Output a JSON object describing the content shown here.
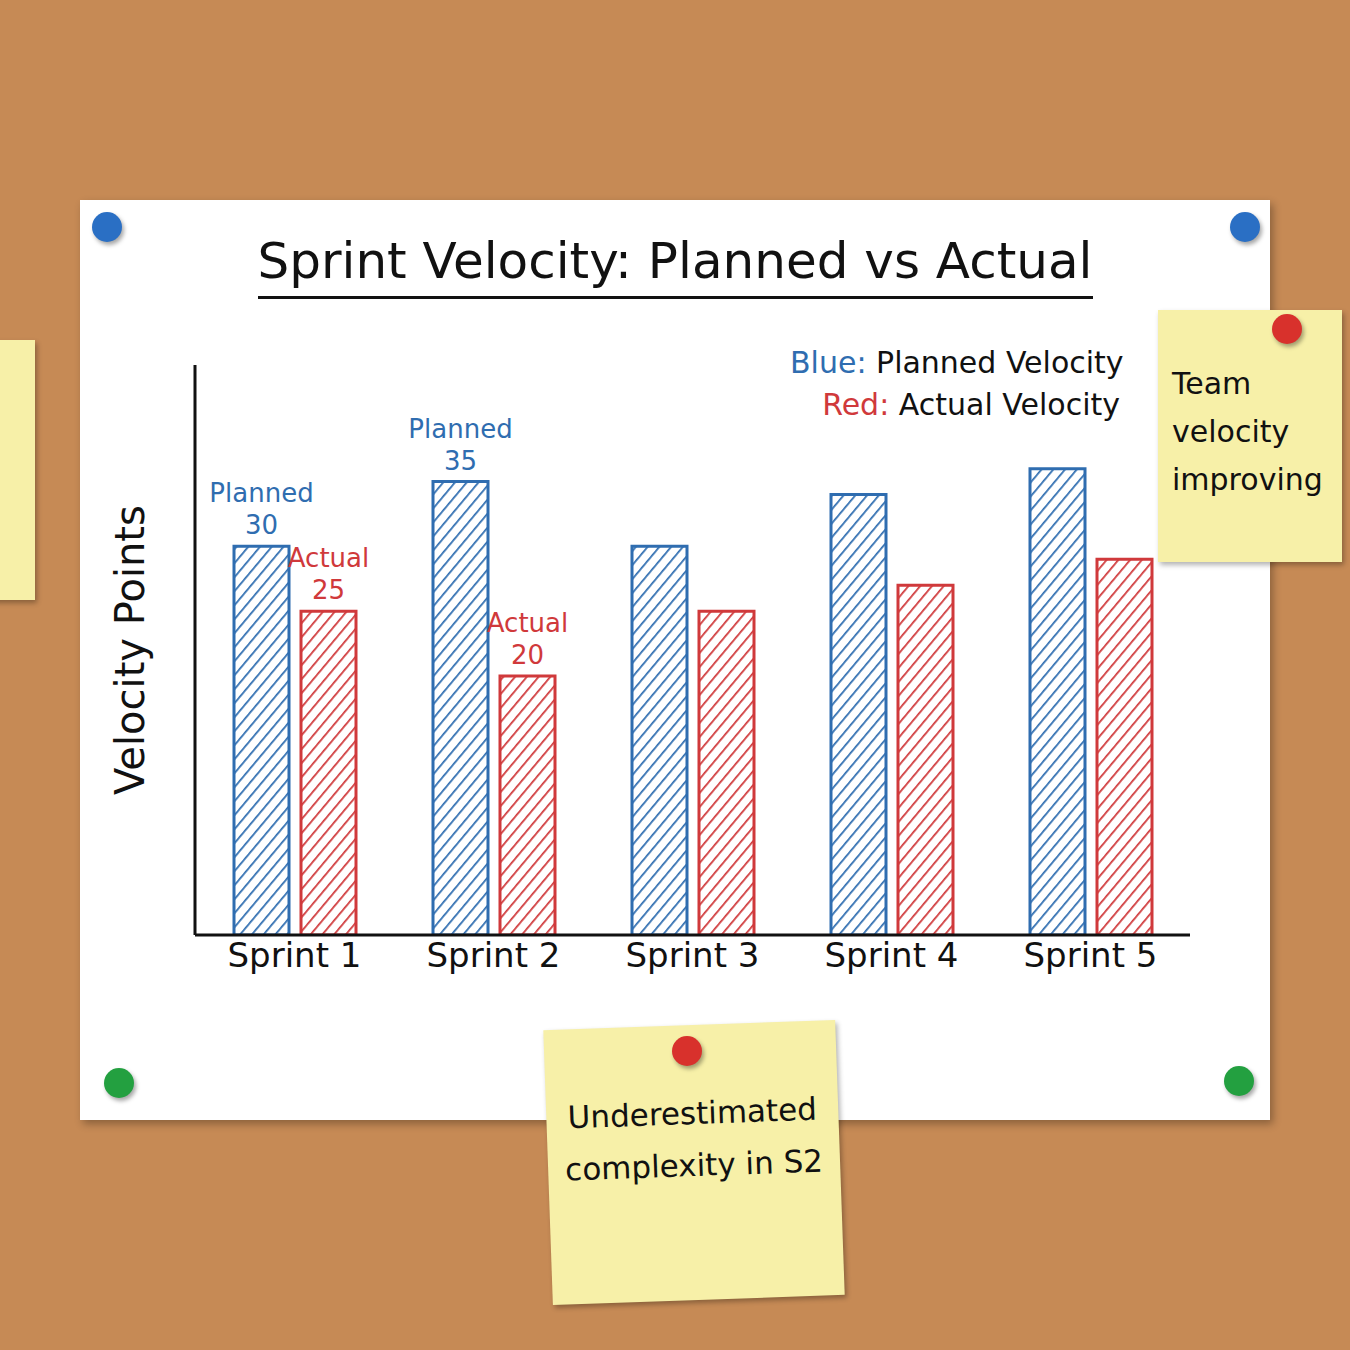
{
  "chart_data": {
    "type": "bar",
    "title": "Sprint Velocity: Planned vs Actual",
    "y_label": "Velocity Points",
    "categories": [
      "Sprint 1",
      "Sprint 2",
      "Sprint 3",
      "Sprint 4",
      "Sprint 5"
    ],
    "series": [
      {
        "name": "Blue: Planned Velocity",
        "color": "#2f6db0",
        "values": [
          30,
          35,
          30,
          34,
          36
        ],
        "value_labels": [
          "Planned 30",
          "Planned 35",
          null,
          null,
          null
        ]
      },
      {
        "name": "Red: Actual Velocity",
        "color": "#d0393b",
        "values": [
          25,
          20,
          25,
          27,
          29
        ],
        "value_labels": [
          "Actual 25",
          "Actual 20",
          null,
          null,
          null
        ]
      }
    ],
    "ylim": [
      0,
      44
    ],
    "tick_labels": "x",
    "data_labels": true,
    "legend": "upper right",
    "annotations": [
      "Team velocity improving",
      "Underestimated complexity in S2"
    ]
  }
}
